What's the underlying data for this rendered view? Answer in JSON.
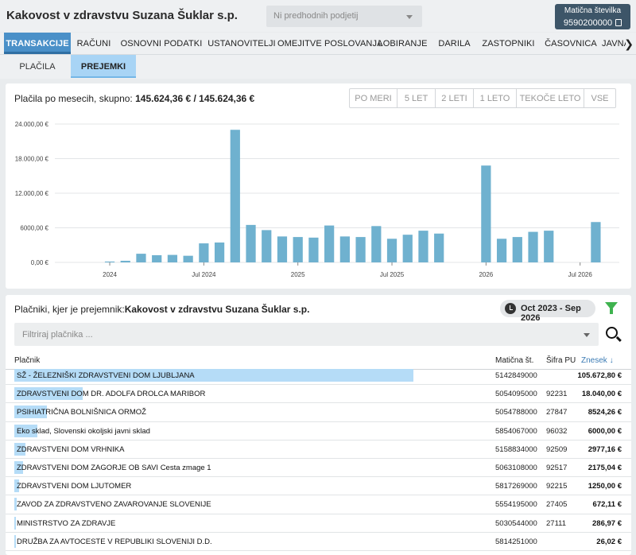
{
  "header": {
    "title": "Kakovost v zdravstvu Suzana Šuklar s.p.",
    "entity_select_placeholder": "Ni predhodnih podjetij",
    "registration_label": "Matična številka",
    "registration_number": "9590200000"
  },
  "tabs": [
    {
      "label": "TRANSAKCIJE",
      "active": true
    },
    {
      "label": "RAČUNI",
      "active": false
    },
    {
      "label": "OSNOVNI PODATKI",
      "active": false
    },
    {
      "label": "USTANOVITELJI",
      "active": false
    },
    {
      "label": "OMEJITVE POSLOVANJA",
      "active": false
    },
    {
      "label": "LOBIRANJE",
      "active": false
    },
    {
      "label": "DARILA",
      "active": false
    },
    {
      "label": "ZASTOPNIKI",
      "active": false
    },
    {
      "label": "ČASOVNICA",
      "active": false
    },
    {
      "label": "JAVNA",
      "active": false
    }
  ],
  "subtabs": [
    {
      "label": "PLAČILA",
      "active": false
    },
    {
      "label": "PREJEMKI",
      "active": true
    }
  ],
  "chart_panel": {
    "heading_label": "Plačila po mesecih, skupno:",
    "heading_value": "145.624,36 € / 145.624,36 €",
    "ranges": [
      "PO MERI",
      "5 LET",
      "2 LETI",
      "1 LETO",
      "TEKOČE LETO",
      "VSE"
    ]
  },
  "chart_data": {
    "type": "bar",
    "title": "",
    "xlabel": "",
    "ylabel": "",
    "ylim": [
      0,
      24000
    ],
    "y_ticks": [
      0,
      6000,
      12000,
      18000,
      24000
    ],
    "y_tick_labels": [
      "0,00 €",
      "6000,00 €",
      "12.000,00 €",
      "18.000,00 €",
      "24.000,00 €"
    ],
    "x_tick_labels": [
      {
        "month_index": 3,
        "label": "2024"
      },
      {
        "month_index": 9,
        "label": "Jul 2024"
      },
      {
        "month_index": 15,
        "label": "2025"
      },
      {
        "month_index": 21,
        "label": "Jul 2025"
      },
      {
        "month_index": 27,
        "label": "2026"
      },
      {
        "month_index": 33,
        "label": "Jul 2026"
      }
    ],
    "months": [
      "Oct 2023",
      "Nov 2023",
      "Dec 2023",
      "Jan 2024",
      "Feb 2024",
      "Mar 2024",
      "Apr 2024",
      "May 2024",
      "Jun 2024",
      "Jul 2024",
      "Aug 2024",
      "Sep 2024",
      "Oct 2024",
      "Nov 2024",
      "Dec 2024",
      "Jan 2025",
      "Feb 2025",
      "Mar 2025",
      "Apr 2025",
      "May 2025",
      "Jun 2025",
      "Jul 2025",
      "Aug 2025",
      "Sep 2025",
      "Oct 2025",
      "Nov 2025",
      "Dec 2025",
      "Jan 2026",
      "Feb 2026",
      "Mar 2026",
      "Apr 2026",
      "May 2026",
      "Jun 2026",
      "Jul 2026",
      "Aug 2026",
      "Sep 2026"
    ],
    "values": [
      0,
      0,
      0,
      150,
      280,
      1500,
      1250,
      1300,
      1150,
      3300,
      3450,
      23000,
      6500,
      5600,
      4500,
      4400,
      4300,
      6400,
      4500,
      4400,
      6300,
      4100,
      4800,
      5500,
      5000,
      0,
      0,
      16800,
      4100,
      4400,
      5300,
      5500,
      0,
      0,
      7000,
      0
    ],
    "bar_color": "#6fb1cf",
    "grid": true
  },
  "payers_panel": {
    "heading_label": "Plačniki, kjer je prejemnik:",
    "heading_value": "Kakovost v zdravstvu Suzana Šuklar s.p.",
    "date_range": "Oct 2023 - Sep 2026",
    "filter_placeholder": "Filtriraj plačnika ...",
    "columns": {
      "payer": "Plačnik",
      "reg": "Matična št.",
      "pu": "Šifra PU",
      "amount": "Znesek"
    },
    "rows": [
      {
        "name": "SŽ - ŽELEZNIŠKI ZDRAVSTVENI DOM LJUBLJANA",
        "reg": "5142849000",
        "pu": "",
        "amount": "105.672,80 €",
        "share": 1.0
      },
      {
        "name": "ZDRAVSTVENI DOM DR. ADOLFA DROLCA MARIBOR",
        "reg": "5054095000",
        "pu": "92231",
        "amount": "18.040,00 €",
        "share": 0.171
      },
      {
        "name": "PSIHIATRIČNA BOLNIŠNICA ORMOŽ",
        "reg": "5054788000",
        "pu": "27847",
        "amount": "8524,26 €",
        "share": 0.081
      },
      {
        "name": "Eko sklad, Slovenski okoljski javni sklad",
        "reg": "5854067000",
        "pu": "96032",
        "amount": "6000,00 €",
        "share": 0.057
      },
      {
        "name": "ZDRAVSTVENI DOM VRHNIKA",
        "reg": "5158834000",
        "pu": "92509",
        "amount": "2977,16 €",
        "share": 0.028
      },
      {
        "name": "ZDRAVSTVENI DOM ZAGORJE OB SAVI Cesta zmage 1",
        "reg": "5063108000",
        "pu": "92517",
        "amount": "2175,04 €",
        "share": 0.021
      },
      {
        "name": "ZDRAVSTVENI DOM LJUTOMER",
        "reg": "5817269000",
        "pu": "92215",
        "amount": "1250,00 €",
        "share": 0.012
      },
      {
        "name": "ZAVOD ZA ZDRAVSTVENO ZAVAROVANJE SLOVENIJE",
        "reg": "5554195000",
        "pu": "27405",
        "amount": "672,11 €",
        "share": 0.006
      },
      {
        "name": "MINISTRSTVO ZA ZDRAVJE",
        "reg": "5030544000",
        "pu": "27111",
        "amount": "286,97 €",
        "share": 0.003
      },
      {
        "name": "DRUŽBA ZA AVTOCESTE V REPUBLIKI SLOVENIJI D.D.",
        "reg": "5814251000",
        "pu": "",
        "amount": "26,02 €",
        "share": 0.0002
      }
    ]
  }
}
